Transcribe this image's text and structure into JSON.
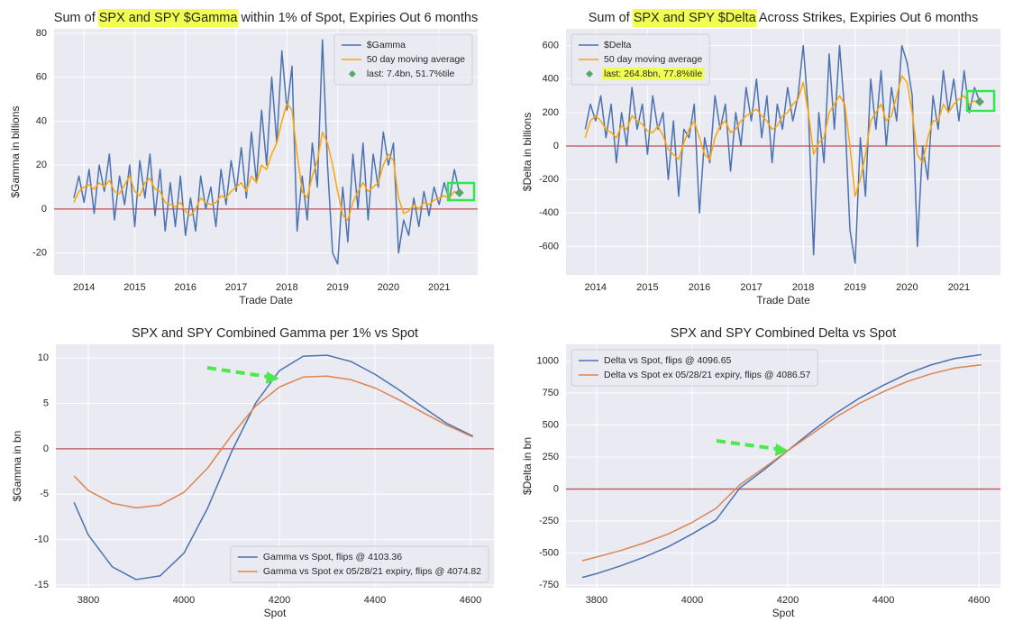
{
  "chart_data": [
    {
      "type": "line",
      "title": "Sum of SPX and SPY $Gamma within 1% of Spot, Expiries Out 6 months",
      "title_highlight": "SPX and SPY $Gamma",
      "xlabel": "Trade Date",
      "ylabel": "$Gamma in billions",
      "x": [
        2013.8,
        2013.9,
        2014.0,
        2014.1,
        2014.2,
        2014.3,
        2014.4,
        2014.5,
        2014.6,
        2014.7,
        2014.8,
        2014.9,
        2015.0,
        2015.1,
        2015.2,
        2015.3,
        2015.4,
        2015.5,
        2015.6,
        2015.7,
        2015.8,
        2015.9,
        2016.0,
        2016.1,
        2016.2,
        2016.3,
        2016.4,
        2016.5,
        2016.6,
        2016.7,
        2016.8,
        2016.9,
        2017.0,
        2017.1,
        2017.2,
        2017.3,
        2017.4,
        2017.5,
        2017.6,
        2017.7,
        2017.8,
        2017.9,
        2018.0,
        2018.1,
        2018.2,
        2018.3,
        2018.4,
        2018.5,
        2018.6,
        2018.7,
        2018.8,
        2018.9,
        2019.0,
        2019.1,
        2019.2,
        2019.3,
        2019.4,
        2019.5,
        2019.6,
        2019.7,
        2019.8,
        2019.9,
        2020.0,
        2020.1,
        2020.2,
        2020.3,
        2020.4,
        2020.5,
        2020.6,
        2020.7,
        2020.8,
        2020.9,
        2021.0,
        2021.1,
        2021.2,
        2021.3,
        2021.4
      ],
      "series": [
        {
          "name": "$Gamma",
          "color": "#4c72b0",
          "values": [
            5,
            15,
            3,
            18,
            -2,
            20,
            8,
            25,
            -5,
            15,
            2,
            20,
            -8,
            22,
            5,
            25,
            -3,
            18,
            -10,
            12,
            -8,
            15,
            -12,
            5,
            -10,
            15,
            0,
            10,
            -8,
            18,
            2,
            22,
            8,
            28,
            5,
            35,
            12,
            45,
            20,
            60,
            30,
            72,
            45,
            65,
            -10,
            15,
            -5,
            30,
            10,
            77,
            20,
            -20,
            -25,
            10,
            -15,
            25,
            0,
            30,
            -5,
            25,
            10,
            35,
            20,
            30,
            -20,
            -5,
            -12,
            5,
            -8,
            8,
            -3,
            10,
            2,
            12,
            4,
            18,
            7.4
          ]
        },
        {
          "name": "50 day moving average",
          "color": "#ffa500",
          "values": [
            3,
            8,
            10,
            11,
            9,
            12,
            10,
            13,
            8,
            7,
            11,
            15,
            8,
            6,
            12,
            14,
            9,
            8,
            3,
            2,
            1,
            3,
            -1,
            -3,
            0,
            5,
            3,
            2,
            3,
            6,
            5,
            8,
            10,
            12,
            8,
            15,
            12,
            20,
            18,
            25,
            30,
            40,
            48,
            45,
            25,
            8,
            5,
            15,
            22,
            35,
            30,
            20,
            8,
            -3,
            -5,
            3,
            8,
            12,
            8,
            10,
            12,
            20,
            25,
            22,
            5,
            -2,
            -1,
            2,
            0,
            3,
            2,
            4,
            5,
            6,
            5,
            8,
            7
          ]
        },
        {
          "name": "last: 7.4bn, 51.7%tile",
          "color": "#55a868",
          "kind": "scatter",
          "x": [
            2021.4
          ],
          "values": [
            7.4
          ]
        }
      ],
      "xlim": [
        2013.41,
        2021.76
      ],
      "xticks": [
        2014,
        2015,
        2016,
        2017,
        2018,
        2019,
        2020,
        2021
      ],
      "ylim": [
        -30,
        82
      ],
      "yticks": [
        -20,
        0,
        20,
        40,
        60,
        80
      ],
      "hline": 0,
      "hline_color": "#c44e52",
      "grid": true,
      "legend": "upper right"
    },
    {
      "type": "line",
      "title": "Sum of SPX and SPY $Delta Across Strikes, Expiries Out 6 months",
      "title_highlight": "SPX and SPY $Delta",
      "xlabel": "Trade Date",
      "ylabel": "$Delta in billions",
      "x": [
        2013.8,
        2013.9,
        2014.0,
        2014.1,
        2014.2,
        2014.3,
        2014.4,
        2014.5,
        2014.6,
        2014.7,
        2014.8,
        2014.9,
        2015.0,
        2015.1,
        2015.2,
        2015.3,
        2015.4,
        2015.5,
        2015.6,
        2015.7,
        2015.8,
        2015.9,
        2016.0,
        2016.1,
        2016.2,
        2016.3,
        2016.4,
        2016.5,
        2016.6,
        2016.7,
        2016.8,
        2016.9,
        2017.0,
        2017.1,
        2017.2,
        2017.3,
        2017.4,
        2017.5,
        2017.6,
        2017.7,
        2017.8,
        2017.9,
        2018.0,
        2018.1,
        2018.2,
        2018.3,
        2018.4,
        2018.5,
        2018.6,
        2018.7,
        2018.8,
        2018.9,
        2019.0,
        2019.1,
        2019.2,
        2019.3,
        2019.4,
        2019.5,
        2019.6,
        2019.7,
        2019.8,
        2019.9,
        2020.0,
        2020.1,
        2020.2,
        2020.3,
        2020.4,
        2020.5,
        2020.6,
        2020.7,
        2020.8,
        2020.9,
        2021.0,
        2021.1,
        2021.2,
        2021.3,
        2021.4
      ],
      "series": [
        {
          "name": "$Delta",
          "color": "#4c72b0",
          "values": [
            100,
            250,
            150,
            300,
            50,
            250,
            -100,
            200,
            0,
            350,
            100,
            250,
            -50,
            300,
            100,
            200,
            -200,
            150,
            -300,
            100,
            50,
            250,
            -400,
            50,
            -100,
            300,
            100,
            250,
            -150,
            200,
            0,
            350,
            150,
            400,
            50,
            300,
            -100,
            250,
            100,
            350,
            150,
            300,
            600,
            200,
            -650,
            200,
            -100,
            550,
            100,
            600,
            200,
            -500,
            -700,
            50,
            -300,
            400,
            100,
            450,
            0,
            350,
            150,
            600,
            500,
            300,
            -600,
            0,
            -200,
            300,
            100,
            450,
            200,
            400,
            150,
            450,
            200,
            350,
            264.8
          ]
        },
        {
          "name": "50 day moving average",
          "color": "#ffa500",
          "values": [
            50,
            150,
            180,
            150,
            100,
            80,
            50,
            120,
            100,
            180,
            150,
            130,
            90,
            80,
            120,
            60,
            -20,
            -50,
            -80,
            20,
            100,
            150,
            50,
            -50,
            -80,
            50,
            120,
            150,
            80,
            100,
            150,
            180,
            200,
            220,
            180,
            150,
            100,
            120,
            180,
            200,
            250,
            280,
            380,
            200,
            -50,
            20,
            50,
            200,
            250,
            300,
            250,
            0,
            -300,
            -200,
            -50,
            150,
            200,
            250,
            150,
            180,
            300,
            420,
            380,
            200,
            -50,
            -100,
            50,
            150,
            150,
            250,
            200,
            250,
            280,
            300,
            250,
            270,
            265
          ]
        },
        {
          "name": "last: 264.8bn, 77.8%tile",
          "color": "#55a868",
          "kind": "scatter",
          "highlight": true,
          "x": [
            2021.4
          ],
          "values": [
            264.8
          ]
        }
      ],
      "xlim": [
        2013.43,
        2021.8
      ],
      "xticks": [
        2014,
        2015,
        2016,
        2017,
        2018,
        2019,
        2020,
        2021
      ],
      "ylim": [
        -770,
        700
      ],
      "yticks": [
        -600,
        -400,
        -200,
        0,
        200,
        400,
        600
      ],
      "hline": 0,
      "hline_color": "#c44e52",
      "grid": true,
      "legend": "upper left"
    },
    {
      "type": "line",
      "title": "SPX and SPY Combined Gamma per 1% vs Spot",
      "xlabel": "Spot",
      "ylabel": "$Gamma in bn",
      "x": [
        3770,
        3800,
        3850,
        3900,
        3950,
        4000,
        4050,
        4100,
        4150,
        4200,
        4250,
        4300,
        4350,
        4400,
        4450,
        4500,
        4550,
        4605
      ],
      "series": [
        {
          "name": "Gamma vs Spot, flips @ 4103.36",
          "color": "#4c72b0",
          "values": [
            -5.9,
            -9.5,
            -13,
            -14.4,
            -14,
            -11.5,
            -6.5,
            -0.3,
            5,
            8.6,
            10.2,
            10.3,
            9.6,
            8.2,
            6.5,
            4.6,
            2.8,
            1.4
          ]
        },
        {
          "name": "Gamma vs Spot ex 05/28/21 expiry, flips @ 4074.82",
          "color": "#dd8452",
          "values": [
            -3,
            -4.6,
            -6,
            -6.5,
            -6.2,
            -4.8,
            -2.1,
            1.5,
            4.7,
            6.8,
            7.9,
            8.0,
            7.6,
            6.7,
            5.4,
            4.0,
            2.6,
            1.3
          ]
        }
      ],
      "xlim": [
        3732,
        4649
      ],
      "xticks": [
        3800,
        4000,
        4200,
        4400,
        4600
      ],
      "ylim": [
        -15.3,
        11.5
      ],
      "yticks": [
        -15,
        -10,
        -5,
        0,
        5,
        10
      ],
      "hline": 0,
      "hline_color": "#c44e52",
      "grid": true,
      "legend": "lower right"
    },
    {
      "type": "line",
      "title": "SPX and SPY Combined Delta vs Spot",
      "xlabel": "Spot",
      "ylabel": "$Delta in bn",
      "x": [
        3770,
        3800,
        3850,
        3900,
        3950,
        4000,
        4050,
        4100,
        4150,
        4200,
        4250,
        4300,
        4350,
        4400,
        4450,
        4500,
        4550,
        4605
      ],
      "series": [
        {
          "name": "Delta vs Spot, flips @ 4096.65",
          "color": "#4c72b0",
          "values": [
            -690,
            -660,
            -600,
            -530,
            -450,
            -350,
            -240,
            10,
            150,
            300,
            450,
            590,
            710,
            810,
            900,
            970,
            1020,
            1050
          ]
        },
        {
          "name": "Delta vs Spot ex 05/28/21 expiry, flips @ 4086.57",
          "color": "#dd8452",
          "values": [
            -560,
            -530,
            -480,
            -420,
            -350,
            -260,
            -150,
            35,
            165,
            300,
            430,
            560,
            670,
            760,
            840,
            900,
            945,
            970
          ]
        }
      ],
      "xlim": [
        3736,
        4645
      ],
      "xticks": [
        3800,
        4000,
        4200,
        4400,
        4600
      ],
      "ylim": [
        -770,
        1130
      ],
      "yticks": [
        -750,
        -500,
        -250,
        0,
        250,
        500,
        750,
        1000
      ],
      "hline": 0,
      "hline_color": "#c44e52",
      "grid": true,
      "legend": "upper left"
    }
  ]
}
